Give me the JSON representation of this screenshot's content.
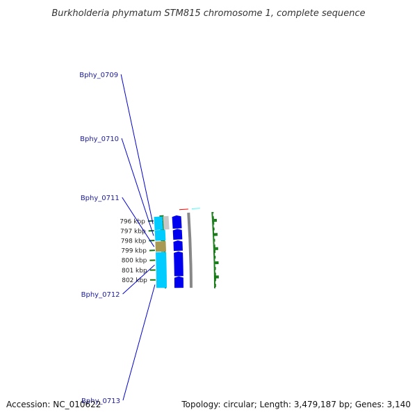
{
  "title": "Burkholderia phymatum STM815 chromosome 1, complete sequence",
  "colors": {
    "forward_cds": "#0000ee",
    "reverse_cds": "#00ccff",
    "reverse_cds_dark": "#0099cc",
    "rna_feature": "#a89a55",
    "pseudo_feature": "#c8c8c8",
    "marker_red": "#ff0000",
    "marker_cyan": "#33ffff",
    "backbone": "#888888",
    "gc_skew": "#117711",
    "label_line": "#0000cc"
  },
  "scale_ticks": [
    {
      "label": "796 kbp",
      "pos": 796
    },
    {
      "label": "797 kbp",
      "pos": 797
    },
    {
      "label": "798 kbp",
      "pos": 798
    },
    {
      "label": "799 kbp",
      "pos": 799
    },
    {
      "label": "800 kbp",
      "pos": 800
    },
    {
      "label": "801 kbp",
      "pos": 801
    },
    {
      "label": "802 kbp",
      "pos": 802
    }
  ],
  "genes": [
    {
      "label": "Bphy_0709"
    },
    {
      "label": "Bphy_0710"
    },
    {
      "label": "Bphy_0711"
    },
    {
      "label": "Bphy_0712"
    },
    {
      "label": "Bphy_0713"
    }
  ],
  "footer": {
    "accession": "Accession: NC_010622",
    "stats": "Topology: circular; Length: 3,479,187 bp; Genes: 3,140"
  }
}
